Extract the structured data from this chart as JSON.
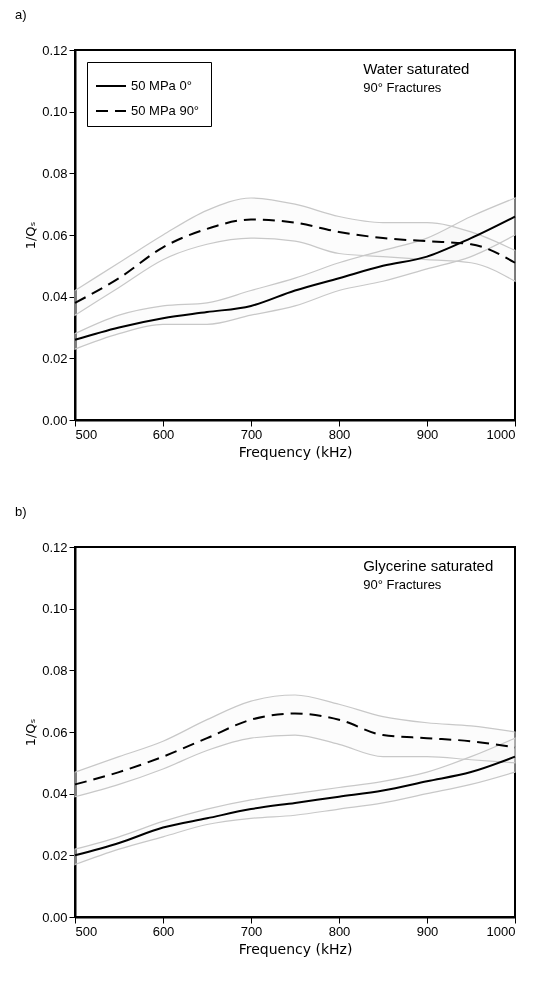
{
  "chart_data": [
    {
      "type": "line",
      "title": "a)",
      "xlabel": "Frequency (kHz)",
      "ylabel": "1/Qₛ",
      "annotations": [
        "Water saturated",
        "90° Fractures"
      ],
      "x": [
        500,
        550,
        600,
        650,
        700,
        750,
        800,
        850,
        900,
        950,
        1000
      ],
      "series": [
        {
          "name": "50 MPa  0°",
          "color": "#000000",
          "line_style": "solid",
          "values": [
            0.026,
            0.03,
            0.033,
            0.035,
            0.037,
            0.042,
            0.046,
            0.05,
            0.053,
            0.059,
            0.066
          ],
          "lower": [
            0.023,
            0.028,
            0.031,
            0.031,
            0.034,
            0.037,
            0.042,
            0.045,
            0.049,
            0.053,
            0.06
          ],
          "upper": [
            0.028,
            0.034,
            0.037,
            0.038,
            0.042,
            0.046,
            0.051,
            0.055,
            0.059,
            0.066,
            0.072
          ]
        },
        {
          "name": "50 MPa  90°",
          "color": "#000000",
          "line_style": "dashed",
          "values": [
            0.038,
            0.046,
            0.056,
            0.062,
            0.065,
            0.064,
            0.061,
            0.059,
            0.058,
            0.057,
            0.051
          ],
          "lower": [
            0.034,
            0.043,
            0.052,
            0.057,
            0.059,
            0.058,
            0.054,
            0.053,
            0.052,
            0.051,
            0.045
          ],
          "upper": [
            0.042,
            0.051,
            0.06,
            0.068,
            0.072,
            0.07,
            0.066,
            0.064,
            0.064,
            0.061,
            0.055
          ]
        }
      ],
      "xlim": [
        500,
        1000
      ],
      "xticks": [
        500,
        600,
        700,
        800,
        900,
        1000
      ],
      "ylim": [
        0,
        0.12
      ],
      "yticks": [
        {
          "value": 0,
          "label": "0.00"
        },
        {
          "value": 0.02,
          "label": "0.02"
        },
        {
          "value": 0.04,
          "label": "0.04"
        },
        {
          "value": 0.06,
          "label": "0.06"
        },
        {
          "value": 0.08,
          "label": "0.08"
        },
        {
          "value": 0.1,
          "label": "0.10"
        },
        {
          "value": 0.12,
          "label": "0.12"
        }
      ],
      "legend": "top left"
    },
    {
      "type": "line",
      "title": "b)",
      "xlabel": "Frequency (kHz)",
      "ylabel": "1/Qₛ",
      "annotations": [
        "Glycerine saturated",
        "90° Fractures"
      ],
      "x": [
        500,
        550,
        600,
        650,
        700,
        750,
        800,
        850,
        900,
        950,
        1000
      ],
      "series": [
        {
          "color": "#000000",
          "line_style": "solid",
          "values": [
            0.02,
            0.024,
            0.029,
            0.032,
            0.035,
            0.037,
            0.039,
            0.041,
            0.044,
            0.047,
            0.052
          ],
          "lower": [
            0.017,
            0.022,
            0.026,
            0.03,
            0.032,
            0.033,
            0.035,
            0.037,
            0.04,
            0.043,
            0.047
          ],
          "upper": [
            0.022,
            0.026,
            0.031,
            0.035,
            0.038,
            0.04,
            0.042,
            0.044,
            0.047,
            0.052,
            0.058
          ]
        },
        {
          "color": "#000000",
          "line_style": "dashed",
          "values": [
            0.043,
            0.047,
            0.052,
            0.058,
            0.064,
            0.066,
            0.064,
            0.059,
            0.058,
            0.057,
            0.055
          ],
          "lower": [
            0.039,
            0.043,
            0.048,
            0.054,
            0.058,
            0.059,
            0.056,
            0.052,
            0.052,
            0.051,
            0.05
          ],
          "upper": [
            0.047,
            0.052,
            0.057,
            0.064,
            0.07,
            0.072,
            0.069,
            0.065,
            0.063,
            0.062,
            0.06
          ]
        }
      ],
      "xlim": [
        500,
        1000
      ],
      "xticks": [
        500,
        600,
        700,
        800,
        900,
        1000
      ],
      "ylim": [
        0,
        0.12
      ],
      "yticks": [
        {
          "value": 0,
          "label": "0.00"
        },
        {
          "value": 0.02,
          "label": "0.02"
        },
        {
          "value": 0.04,
          "label": "0.04"
        },
        {
          "value": 0.06,
          "label": "0.06"
        },
        {
          "value": 0.08,
          "label": "0.08"
        },
        {
          "value": 0.1,
          "label": "0.10"
        },
        {
          "value": 0.12,
          "label": "0.12"
        }
      ],
      "legend": false
    }
  ]
}
